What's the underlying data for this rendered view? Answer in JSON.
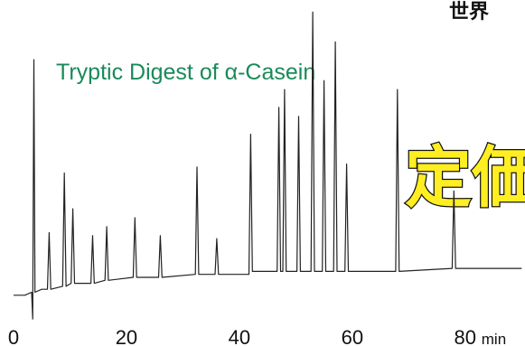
{
  "chart_data": {
    "type": "line",
    "title": "Tryptic Digest of α-Casein",
    "x_unit": "min",
    "annotations": [
      "世界",
      "定価"
    ],
    "color": "#222222",
    "x": [
      0,
      2,
      3.2,
      3.4,
      3.6,
      3.8,
      5,
      6,
      6.3,
      6.6,
      8.7,
      9,
      9.3,
      10.2,
      10.5,
      10.8,
      13.7,
      14,
      14.3,
      16.2,
      16.5,
      16.8,
      21.2,
      21.5,
      21.8,
      25.7,
      26,
      26.3,
      32.2,
      32.5,
      32.8,
      35.7,
      36,
      36.3,
      41.7,
      42,
      42.3,
      46.7,
      47,
      47.3,
      47.7,
      48,
      48.3,
      50.2,
      50.5,
      50.8,
      52.7,
      53,
      53.3,
      54.7,
      55,
      55.3,
      56.7,
      57,
      57.3,
      58.7,
      59,
      59.3,
      67.7,
      68,
      68.3,
      77.7,
      78,
      78.3,
      90
    ],
    "values": [
      4,
      4,
      5,
      -4,
      83,
      5,
      6,
      6,
      25,
      6,
      7,
      45,
      7,
      8,
      33,
      8,
      8,
      24,
      8,
      9,
      27,
      9,
      10,
      30,
      10,
      10,
      24,
      10,
      11,
      47,
      11,
      11,
      23,
      11,
      11,
      58,
      12,
      12,
      67,
      12,
      12,
      73,
      12,
      12,
      64,
      12,
      12,
      99,
      12,
      12,
      76,
      12,
      12,
      89,
      12,
      12,
      48,
      12,
      12,
      73,
      12,
      13,
      39,
      13,
      13
    ],
    "xlim": [
      -2.4,
      90.6
    ],
    "ylim": [
      -9.1,
      101.5
    ],
    "xticks": [
      0,
      20,
      40,
      60,
      80
    ]
  }
}
